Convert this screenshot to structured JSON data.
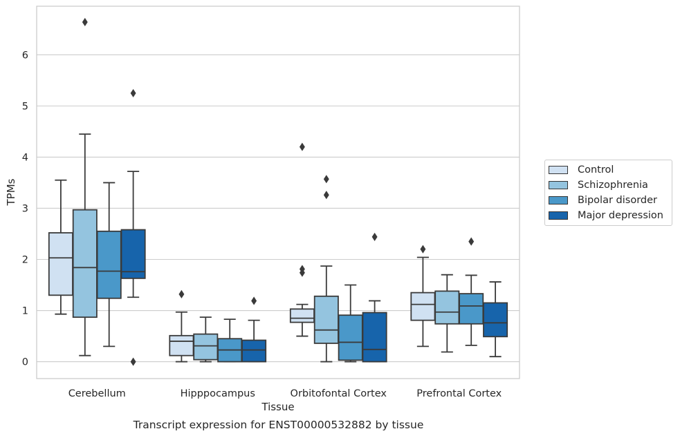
{
  "chart_data": {
    "type": "box",
    "caption": "Transcript expression for ENST00000532882 by tissue",
    "xlabel": "Tissue",
    "ylabel": "TPMs",
    "ylim": [
      -0.33,
      6.95
    ],
    "yticks": [
      0,
      1,
      2,
      3,
      4,
      5,
      6
    ],
    "grid": true,
    "legend_position": "right",
    "categories": [
      "Cerebellum",
      "Hipppocampus",
      "Orbitofontal Cortex",
      "Prefrontal Cortex"
    ],
    "series": [
      {
        "name": "Control",
        "color": "#d0e1f2",
        "boxes": [
          {
            "whislo": 0.93,
            "q1": 1.3,
            "med": 2.03,
            "q3": 2.52,
            "whishi": 3.55,
            "fliers": []
          },
          {
            "whislo": 0.0,
            "q1": 0.12,
            "med": 0.4,
            "q3": 0.51,
            "whishi": 0.97,
            "fliers": [
              1.32
            ]
          },
          {
            "whislo": 0.5,
            "q1": 0.77,
            "med": 0.85,
            "q3": 1.03,
            "whishi": 1.12,
            "fliers": [
              4.2,
              1.81,
              1.74
            ]
          },
          {
            "whislo": 0.3,
            "q1": 0.81,
            "med": 1.12,
            "q3": 1.35,
            "whishi": 2.04,
            "fliers": [
              2.2
            ]
          }
        ]
      },
      {
        "name": "Schizophrenia",
        "color": "#94c4df",
        "boxes": [
          {
            "whislo": 0.12,
            "q1": 0.87,
            "med": 1.84,
            "q3": 2.97,
            "whishi": 4.45,
            "fliers": [
              6.64
            ]
          },
          {
            "whislo": 0.0,
            "q1": 0.04,
            "med": 0.31,
            "q3": 0.54,
            "whishi": 0.87,
            "fliers": []
          },
          {
            "whislo": 0.0,
            "q1": 0.36,
            "med": 0.62,
            "q3": 1.28,
            "whishi": 1.87,
            "fliers": [
              3.57,
              3.26
            ]
          },
          {
            "whislo": 0.19,
            "q1": 0.74,
            "med": 0.97,
            "q3": 1.38,
            "whishi": 1.7,
            "fliers": []
          }
        ]
      },
      {
        "name": "Bipolar disorder",
        "color": "#4a98c9",
        "boxes": [
          {
            "whislo": 0.3,
            "q1": 1.24,
            "med": 1.77,
            "q3": 2.55,
            "whishi": 3.5,
            "fliers": []
          },
          {
            "whislo": 0.0,
            "q1": 0.0,
            "med": 0.23,
            "q3": 0.45,
            "whishi": 0.83,
            "fliers": []
          },
          {
            "whislo": 0.0,
            "q1": 0.03,
            "med": 0.38,
            "q3": 0.91,
            "whishi": 1.5,
            "fliers": []
          },
          {
            "whislo": 0.32,
            "q1": 0.74,
            "med": 1.09,
            "q3": 1.33,
            "whishi": 1.69,
            "fliers": [
              2.35
            ]
          }
        ]
      },
      {
        "name": "Major depression",
        "color": "#1764ab",
        "boxes": [
          {
            "whislo": 1.26,
            "q1": 1.63,
            "med": 1.76,
            "q3": 2.58,
            "whishi": 3.72,
            "fliers": [
              5.25,
              0.0
            ]
          },
          {
            "whislo": 0.0,
            "q1": 0.0,
            "med": 0.23,
            "q3": 0.42,
            "whishi": 0.81,
            "fliers": [
              1.19
            ]
          },
          {
            "whislo": 0.0,
            "q1": 0.0,
            "med": 0.24,
            "q3": 0.96,
            "whishi": 1.19,
            "fliers": [
              2.44
            ]
          },
          {
            "whislo": 0.1,
            "q1": 0.49,
            "med": 0.76,
            "q3": 1.15,
            "whishi": 1.56,
            "fliers": []
          }
        ]
      }
    ]
  }
}
